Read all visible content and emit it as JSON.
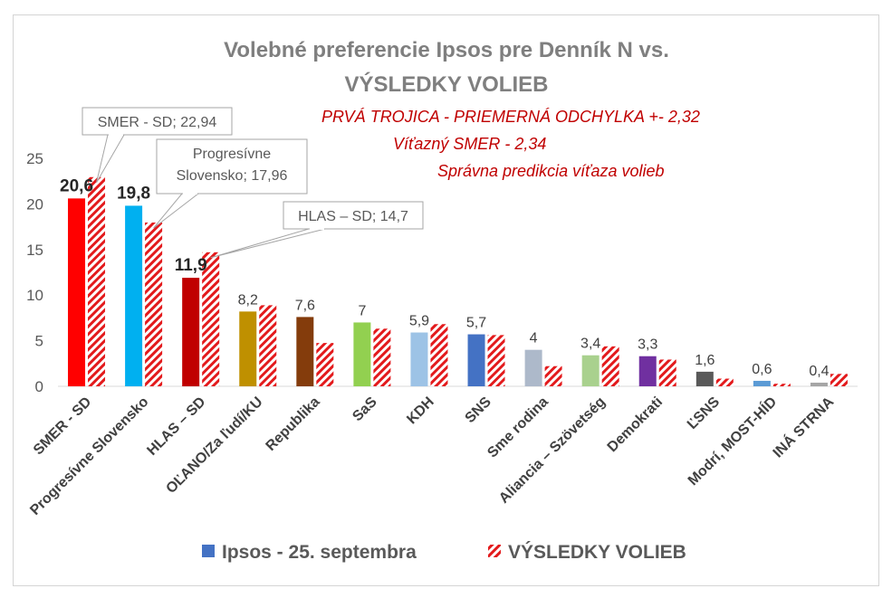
{
  "chart_data": {
    "type": "bar",
    "title": [
      "Volebné preferencie Ipsos pre Denník N vs.",
      "VÝSLEDKY VOLIEB"
    ],
    "annotations": [
      "PRVÁ TROJICA - PRIEMERNÁ ODCHYLKA +- 2,32",
      "Víťazný SMER - 2,34",
      "Správna predikcia víťaza volieb"
    ],
    "callouts": [
      {
        "lines": [
          "SMER - SD; 22,94"
        ],
        "category": 0
      },
      {
        "lines": [
          "Progresívne",
          "Slovensko; 17,96"
        ],
        "category": 1
      },
      {
        "lines": [
          "HLAS – SD; 14,7"
        ],
        "category": 2
      }
    ],
    "categories": [
      "SMER - SD",
      "Progresívne Slovensko",
      "HLAS – SD",
      "OĽANO/Za ľudí/KU",
      "Republika",
      "SaS",
      "KDH",
      "SNS",
      "Sme rodina",
      "Aliancia – Szövetség",
      "Demokrati",
      "ĽSNS",
      "Modrí, MOST-HÍD",
      "INÁ STRNA"
    ],
    "series": [
      {
        "name": "Ipsos - 25. septembra",
        "values": [
          20.6,
          19.8,
          11.9,
          8.2,
          7.6,
          7,
          5.9,
          5.7,
          4,
          3.4,
          3.3,
          1.6,
          0.6,
          0.4
        ],
        "labels": [
          "20,6",
          "19,8",
          "11,9",
          "8,2",
          "7,6",
          "7",
          "5,9",
          "5,7",
          "4",
          "3,4",
          "3,3",
          "1,6",
          "0,6",
          "0,4"
        ],
        "colors": [
          "#ff0000",
          "#00b0f0",
          "#c00000",
          "#bf9000",
          "#843c0c",
          "#92d050",
          "#9dc3e6",
          "#4472c4",
          "#adb9ca",
          "#a9d18e",
          "#7030a0",
          "#595959",
          "#5b9bd5",
          "#a6a6a6"
        ]
      },
      {
        "name": "VÝSLEDKY VOLIEB",
        "values": [
          22.94,
          17.96,
          14.7,
          8.89,
          4.75,
          6.32,
          6.82,
          5.62,
          2.21,
          4.38,
          2.93,
          0.84,
          0.28,
          1.36
        ],
        "pattern": "red-diagonal-stripes"
      }
    ],
    "ylim": [
      0,
      25
    ],
    "yticks": [
      "0",
      "5",
      "10",
      "15",
      "20",
      "25"
    ],
    "ytick_values": [
      0,
      5,
      10,
      15,
      20,
      25
    ],
    "grid": false,
    "legend_position": "bottom",
    "colors": {
      "hatch": "#e31a1c",
      "legend_ipsos": "#4472c4"
    }
  }
}
